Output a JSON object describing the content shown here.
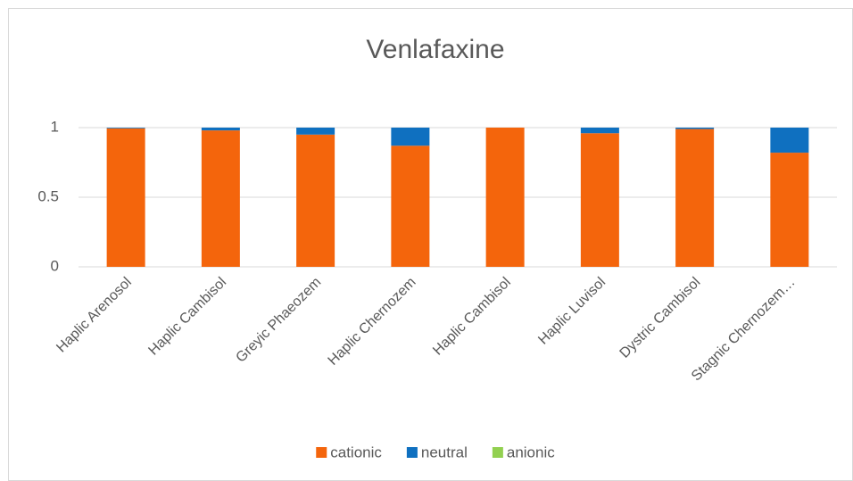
{
  "chart_data": {
    "type": "stacked_bar",
    "title": "Venlafaxine",
    "categories": [
      "Haplic Arenosol",
      "Haplic Cambisol",
      "Greyic Phaeozem",
      "Haplic Chernozem",
      "Haplic Cambisol",
      "Haplic Luvisol",
      "Dystric Cambisol",
      "Stagnic Chernozem…"
    ],
    "series": [
      {
        "name": "cationic",
        "color": "#f4650c",
        "values": [
          0.995,
          0.98,
          0.95,
          0.87,
          1.0,
          0.96,
          0.99,
          0.82
        ]
      },
      {
        "name": "neutral",
        "color": "#0f70c0",
        "values": [
          0.005,
          0.02,
          0.05,
          0.13,
          0,
          0.04,
          0.01,
          0.18
        ]
      },
      {
        "name": "anionic",
        "color": "#92d050",
        "values": [
          0,
          0,
          0,
          0,
          0,
          0,
          0,
          0
        ]
      }
    ],
    "ylim": [
      0,
      1
    ],
    "yticks": [
      0,
      0.5,
      1
    ],
    "grid": true,
    "legend": "bottom"
  }
}
